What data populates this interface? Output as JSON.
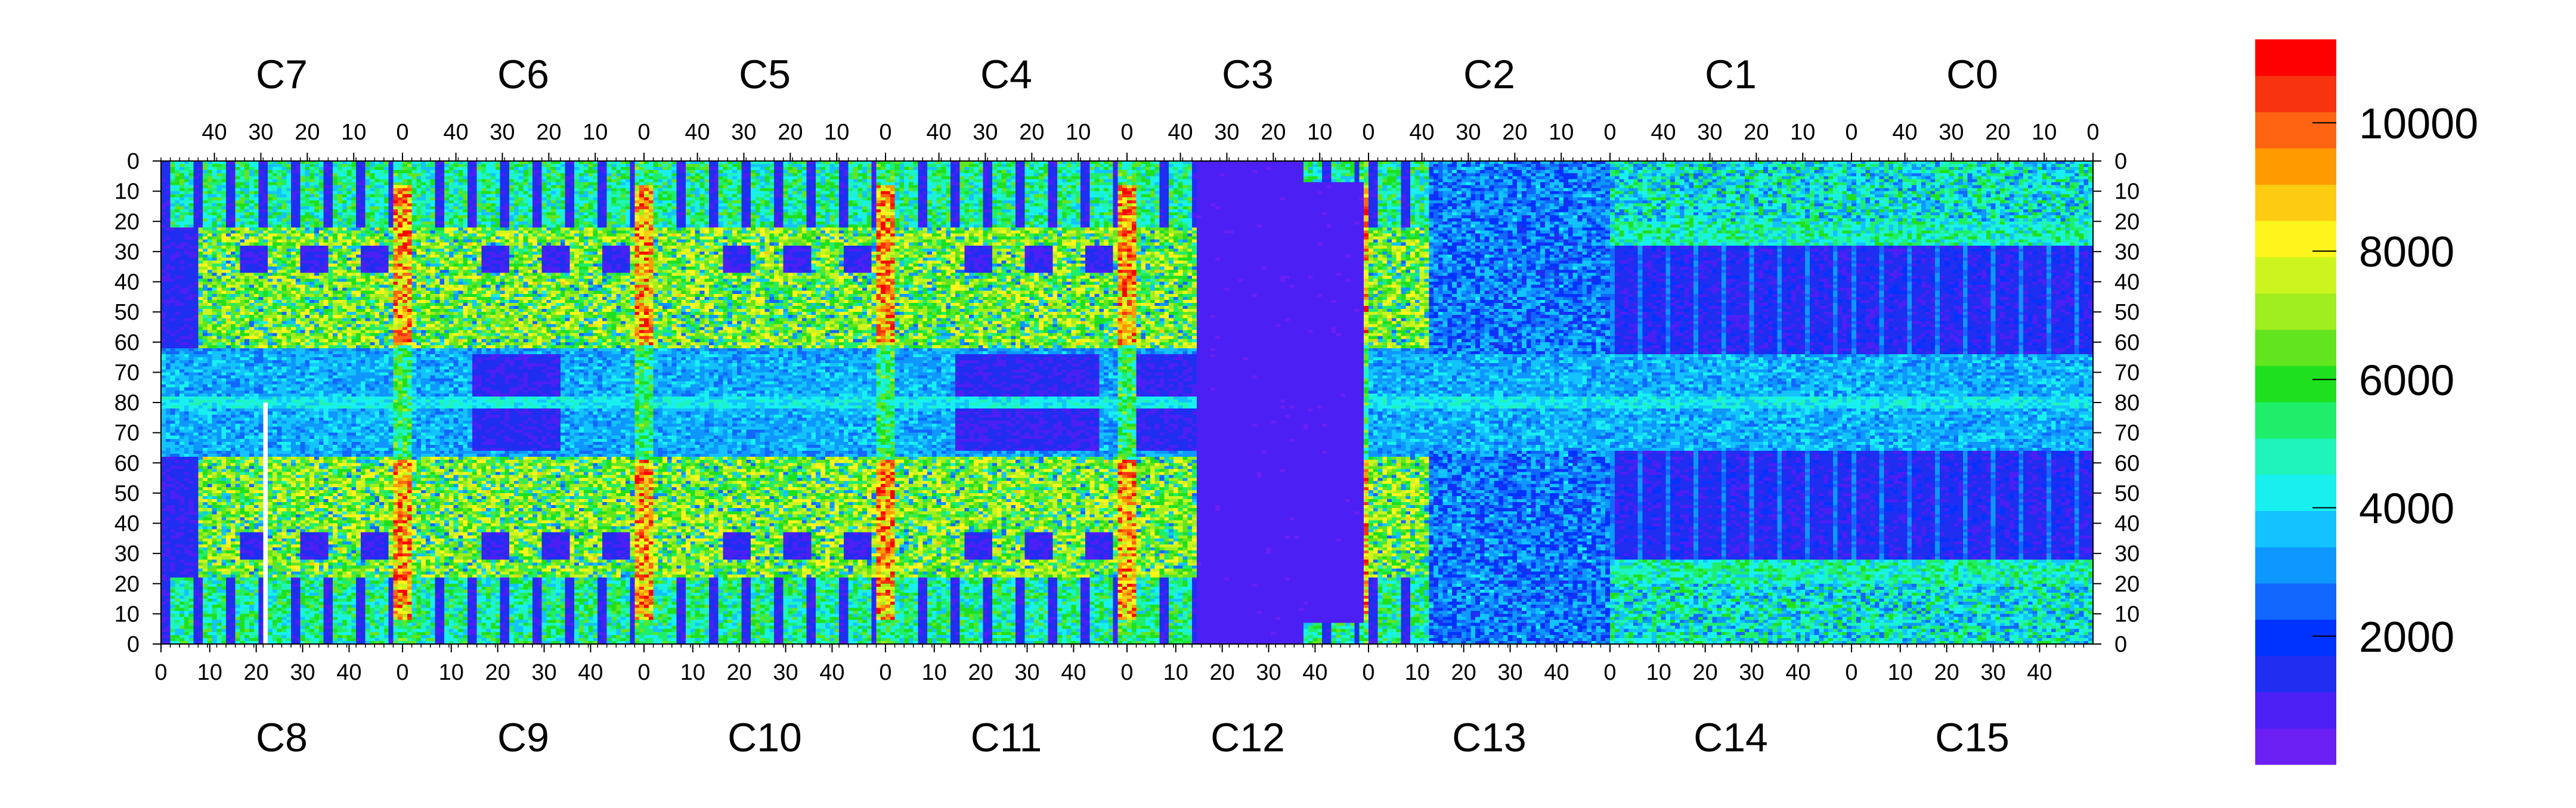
{
  "chart_data": {
    "type": "heatmap",
    "chip_labels_top": [
      "C7",
      "C6",
      "C5",
      "C4",
      "C3",
      "C2",
      "C1",
      "C0"
    ],
    "chip_labels_bottom": [
      "C8",
      "C9",
      "C10",
      "C11",
      "C12",
      "C13",
      "C14",
      "C15"
    ],
    "top_tick_labels": [
      "40",
      "30",
      "20",
      "10",
      "0"
    ],
    "bottom_tick_labels": [
      "0",
      "10",
      "20",
      "30",
      "40"
    ],
    "y_tick_labels": [
      "0",
      "10",
      "20",
      "30",
      "40",
      "50",
      "60",
      "70",
      "80",
      "70",
      "60",
      "50",
      "40",
      "30",
      "20",
      "10",
      "0"
    ],
    "z_min": 0,
    "z_max": 11300,
    "colorbar_ticks": [
      2000,
      4000,
      6000,
      8000,
      10000
    ],
    "colorbar_tick_labels": [
      "2000",
      "4000",
      "6000",
      "8000",
      "10000"
    ],
    "colorbar_colors": [
      "#6b1ff2",
      "#4c1ff5",
      "#1f2ef0",
      "#0033ff",
      "#1167ff",
      "#0e97ff",
      "#13c3ff",
      "#18f0f0",
      "#1ff4ba",
      "#1fee6a",
      "#1fe01f",
      "#62e51f",
      "#9fee1f",
      "#ccf51f",
      "#fdf51c",
      "#fdcb12",
      "#ff9b00",
      "#ff6413",
      "#f73310",
      "#ff0000"
    ],
    "grid": false,
    "colorbar": "right",
    "description_layout": "2 rows x 8 chips, each chip 52 columns x 80 rows; top row rows 0-79, bottom row mirrored",
    "features": {
      "high_columns_at_chip_edges": true,
      "low_region_chip": "C13/C14 (center right)",
      "dead_column_chip": "C8"
    }
  }
}
